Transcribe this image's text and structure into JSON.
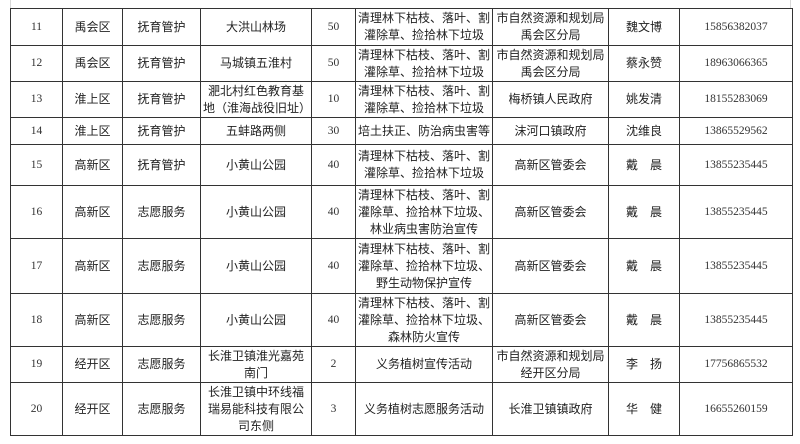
{
  "rows": [
    {
      "no": "11",
      "district": "禹会区",
      "type": "抚育管护",
      "location": "大洪山林场",
      "count": "50",
      "content": "清理林下枯枝、落叶、割灌除草、捡拾林下垃圾",
      "unit": "市自然资源和规划局禹会区分局",
      "contact": "魏文博",
      "phone": "15856382037"
    },
    {
      "no": "12",
      "district": "禹会区",
      "type": "抚育管护",
      "location": "马城镇五淮村",
      "count": "50",
      "content": "清理林下枯枝、落叶、割灌除草、捡拾林下垃圾",
      "unit": "市自然资源和规划局禹会区分局",
      "contact": "蔡永赞",
      "phone": "18963066365"
    },
    {
      "no": "13",
      "district": "淮上区",
      "type": "抚育管护",
      "location": "淝北村红色教育基地（淮海战役旧址）",
      "count": "10",
      "content": "清理林下枯枝、落叶、割灌除草、捡拾林下垃圾",
      "unit": "梅桥镇人民政府",
      "contact": "姚发清",
      "phone": "18155283069"
    },
    {
      "no": "14",
      "district": "淮上区",
      "type": "抚育管护",
      "location": "五蚌路两侧",
      "count": "30",
      "content": "培土扶正、防治病虫害等",
      "unit": "沫河口镇政府",
      "contact": "沈维良",
      "phone": "13865529562"
    },
    {
      "no": "15",
      "district": "高新区",
      "type": "抚育管护",
      "location": "小黄山公园",
      "count": "40",
      "content": "清理林下枯枝、落叶、割灌除草、捡拾林下垃圾",
      "unit": "高新区管委会",
      "contact": "戴　晨",
      "phone": "13855235445"
    },
    {
      "no": "16",
      "district": "高新区",
      "type": "志愿服务",
      "location": "小黄山公园",
      "count": "40",
      "content": "清理林下枯枝、落叶、割灌除草、捡拾林下垃圾、林业病虫害防治宣传",
      "unit": "高新区管委会",
      "contact": "戴　晨",
      "phone": "13855235445"
    },
    {
      "no": "17",
      "district": "高新区",
      "type": "志愿服务",
      "location": "小黄山公园",
      "count": "40",
      "content": "清理林下枯枝、落叶、割灌除草、捡拾林下垃圾、野生动物保护宣传",
      "unit": "高新区管委会",
      "contact": "戴　晨",
      "phone": "13855235445"
    },
    {
      "no": "18",
      "district": "高新区",
      "type": "志愿服务",
      "location": "小黄山公园",
      "count": "40",
      "content": "清理林下枯枝、落叶、割灌除草、捡拾林下垃圾、森林防火宣传",
      "unit": "高新区管委会",
      "contact": "戴　晨",
      "phone": "13855235445"
    },
    {
      "no": "19",
      "district": "经开区",
      "type": "志愿服务",
      "location": "长淮卫镇淮光嘉苑南门",
      "count": "2",
      "content": "义务植树宣传活动",
      "unit": "市自然资源和规划局经开区分局",
      "contact": "李　扬",
      "phone": "17756865532"
    },
    {
      "no": "20",
      "district": "经开区",
      "type": "志愿服务",
      "location": "长淮卫镇中环线福瑞易能科技有限公司东侧",
      "count": "3",
      "content": "义务植树志愿服务活动",
      "unit": "长淮卫镇镇政府",
      "contact": "华　健",
      "phone": "16655260159"
    }
  ]
}
